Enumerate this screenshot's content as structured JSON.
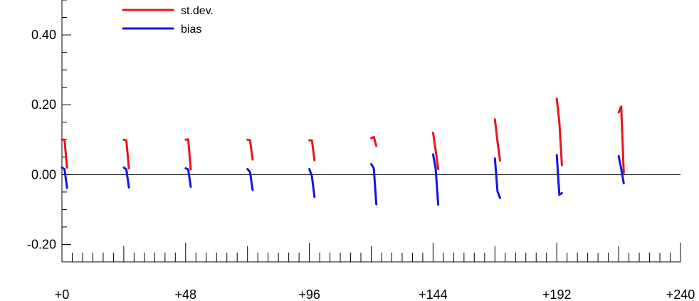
{
  "chart_data": {
    "type": "line",
    "title": "",
    "xlabel": "",
    "ylabel": "",
    "xlim": [
      0,
      240
    ],
    "ylim": [
      -0.25,
      0.5
    ],
    "x_ticks": [
      0,
      48,
      96,
      144,
      192,
      240
    ],
    "x_tick_labels": [
      "+0",
      "+48",
      "+96",
      "+144",
      "+192",
      "+240"
    ],
    "x_minor_step": 4,
    "x_mid_step": 24,
    "y_ticks": [
      -0.2,
      0.0,
      0.2,
      0.4
    ],
    "y_tick_labels": [
      "-0.20",
      "0.00",
      "0.20",
      "0.40"
    ],
    "y_minor_step": 0.05,
    "zero_line": true,
    "grid": false,
    "legend_position": "top-left",
    "series": [
      {
        "name": "st.dev.",
        "color": "#e8141c",
        "segments": [
          [
            [
              0,
              0.1
            ],
            [
              1,
              0.1
            ],
            [
              2,
              0.02
            ]
          ],
          [
            [
              24,
              0.1
            ],
            [
              25,
              0.098
            ],
            [
              26,
              0.018
            ]
          ],
          [
            [
              48,
              0.1
            ],
            [
              49,
              0.101
            ],
            [
              50,
              0.015
            ]
          ],
          [
            [
              72,
              0.1
            ],
            [
              73,
              0.098
            ],
            [
              74,
              0.043
            ]
          ],
          [
            [
              96,
              0.098
            ],
            [
              97,
              0.098
            ],
            [
              98,
              0.041
            ]
          ],
          [
            [
              120,
              0.104
            ],
            [
              121,
              0.108
            ],
            [
              122,
              0.082
            ]
          ],
          [
            [
              144,
              0.12
            ],
            [
              145,
              0.07
            ],
            [
              146,
              0.016
            ]
          ],
          [
            [
              168,
              0.158
            ],
            [
              169,
              0.095
            ],
            [
              170,
              0.04
            ]
          ],
          [
            [
              192,
              0.217
            ],
            [
              193,
              0.15
            ],
            [
              194,
              0.027
            ]
          ],
          [
            [
              216,
              0.178
            ],
            [
              217,
              0.195
            ],
            [
              218,
              0.005
            ]
          ]
        ]
      },
      {
        "name": "bias",
        "color": "#1414e0",
        "segments": [
          [
            [
              0,
              0.02
            ],
            [
              1,
              0.016
            ],
            [
              2,
              -0.038
            ]
          ],
          [
            [
              24,
              0.02
            ],
            [
              25,
              0.015
            ],
            [
              26,
              -0.037
            ]
          ],
          [
            [
              48,
              0.018
            ],
            [
              49,
              0.015
            ],
            [
              50,
              -0.035
            ]
          ],
          [
            [
              72,
              0.016
            ],
            [
              73,
              0.007
            ],
            [
              74,
              -0.044
            ]
          ],
          [
            [
              96,
              0.016
            ],
            [
              97,
              -0.005
            ],
            [
              98,
              -0.064
            ]
          ],
          [
            [
              120,
              0.03
            ],
            [
              121,
              0.018
            ],
            [
              122,
              -0.085
            ]
          ],
          [
            [
              144,
              0.058
            ],
            [
              145,
              0.018
            ],
            [
              146,
              -0.086
            ]
          ],
          [
            [
              168,
              0.046
            ],
            [
              169,
              -0.048
            ],
            [
              170,
              -0.067
            ]
          ],
          [
            [
              192,
              0.056
            ],
            [
              193,
              -0.058
            ],
            [
              194,
              -0.053
            ]
          ],
          [
            [
              216,
              0.053
            ],
            [
              217,
              0.017
            ],
            [
              218,
              -0.025
            ]
          ]
        ]
      }
    ]
  }
}
